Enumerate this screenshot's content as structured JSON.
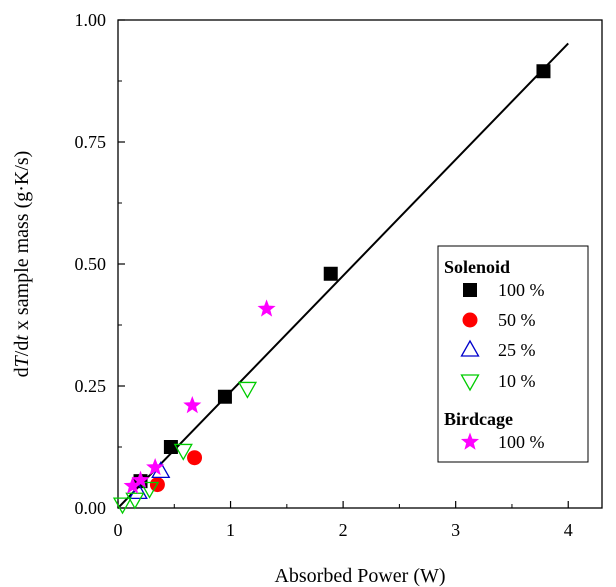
{
  "chart_data": {
    "type": "scatter",
    "xlabel": "Absorbed Power (W)",
    "ylabel_parts": [
      "d",
      "T",
      "/d",
      "t",
      " x sample mass (g·K/s)"
    ],
    "xlim": [
      0,
      4.3
    ],
    "ylim": [
      0,
      1.0
    ],
    "x_ticks": [
      0,
      1,
      2,
      3,
      4
    ],
    "x_tick_labels": [
      "0",
      "1",
      "2",
      "3",
      "4"
    ],
    "y_ticks": [
      0,
      0.25,
      0.5,
      0.75,
      1.0
    ],
    "y_tick_labels": [
      "0.00",
      "0.25",
      "0.50",
      "0.75",
      "1.00"
    ],
    "grid": false,
    "legend_position": "lower-right",
    "legend_groups": [
      {
        "title": "Solenoid",
        "entries": [
          0,
          1,
          2,
          3
        ]
      },
      {
        "title": "Birdcage",
        "entries": [
          4
        ]
      }
    ],
    "series": [
      {
        "name": "100 %",
        "group": "Solenoid",
        "marker": "square",
        "color": "#000000",
        "x": [
          0.2,
          0.47,
          0.95,
          1.89,
          3.78
        ],
        "y": [
          0.055,
          0.125,
          0.228,
          0.48,
          0.895
        ]
      },
      {
        "name": "50 %",
        "group": "Solenoid",
        "marker": "circle",
        "color": "#ff0000",
        "x": [
          0.35,
          0.68
        ],
        "y": [
          0.048,
          0.103
        ]
      },
      {
        "name": "25 %",
        "group": "Solenoid",
        "marker": "triangle",
        "color": "#0000cc",
        "x": [
          0.18,
          0.38
        ],
        "y": [
          0.032,
          0.075
        ]
      },
      {
        "name": "10 %",
        "group": "Solenoid",
        "marker": "triangle-down",
        "color": "#00cc00",
        "x": [
          0.04,
          0.15,
          0.28,
          0.58,
          1.15
        ],
        "y": [
          0.008,
          0.018,
          0.04,
          0.118,
          0.245
        ]
      },
      {
        "name": "100 %",
        "group": "Birdcage",
        "marker": "star",
        "color": "#ff00ff",
        "x": [
          0.13,
          0.2,
          0.33,
          0.66,
          1.32
        ],
        "y": [
          0.045,
          0.057,
          0.083,
          0.21,
          0.408
        ]
      }
    ],
    "fit_line": {
      "x": [
        0,
        4
      ],
      "y": [
        0,
        0.952
      ],
      "color": "#000000"
    }
  }
}
